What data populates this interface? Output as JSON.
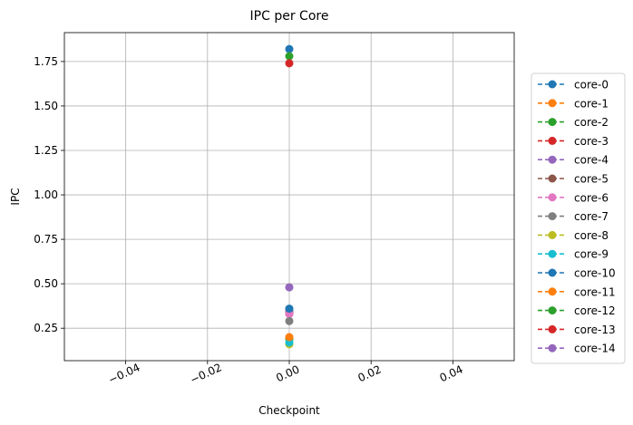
{
  "chart_data": {
    "type": "line",
    "title": "IPC per Core",
    "xlabel": "Checkpoint",
    "ylabel": "IPC",
    "xlim": [
      -0.055,
      0.055
    ],
    "ylim": [
      0.0675,
      1.9125
    ],
    "xticks": [
      -0.04,
      -0.02,
      0.0,
      0.02,
      0.04
    ],
    "xtick_labels": [
      "−0.04",
      "−0.02",
      "0.00",
      "0.02",
      "0.04"
    ],
    "yticks": [
      0.25,
      0.5,
      0.75,
      1.0,
      1.25,
      1.5,
      1.75
    ],
    "ytick_labels": [
      "0.25",
      "0.50",
      "0.75",
      "1.00",
      "1.25",
      "1.50",
      "1.75"
    ],
    "grid": true,
    "legend_position": "right, outside plot",
    "line_style": "dashed",
    "marker": "circle",
    "series": [
      {
        "name": "core-0",
        "color": "#1f77b4",
        "x": [
          0
        ],
        "values": [
          1.82
        ]
      },
      {
        "name": "core-1",
        "color": "#ff7f0e",
        "x": [
          0
        ],
        "values": [
          0.19
        ]
      },
      {
        "name": "core-2",
        "color": "#2ca02c",
        "x": [
          0
        ],
        "values": [
          0.19
        ]
      },
      {
        "name": "core-3",
        "color": "#d62728",
        "x": [
          0
        ],
        "values": [
          0.34
        ]
      },
      {
        "name": "core-4",
        "color": "#9467bd",
        "x": [
          0
        ],
        "values": [
          0.35
        ]
      },
      {
        "name": "core-5",
        "color": "#8c564b",
        "x": [
          0
        ],
        "values": [
          0.33
        ]
      },
      {
        "name": "core-6",
        "color": "#e377c2",
        "x": [
          0
        ],
        "values": [
          0.33
        ]
      },
      {
        "name": "core-7",
        "color": "#7f7f7f",
        "x": [
          0
        ],
        "values": [
          0.29
        ]
      },
      {
        "name": "core-8",
        "color": "#bcbd22",
        "x": [
          0
        ],
        "values": [
          0.16
        ]
      },
      {
        "name": "core-9",
        "color": "#17becf",
        "x": [
          0
        ],
        "values": [
          0.17
        ]
      },
      {
        "name": "core-10",
        "color": "#1f77b4",
        "x": [
          0
        ],
        "values": [
          0.36
        ]
      },
      {
        "name": "core-11",
        "color": "#ff7f0e",
        "x": [
          0
        ],
        "values": [
          0.2
        ]
      },
      {
        "name": "core-12",
        "color": "#2ca02c",
        "x": [
          0
        ],
        "values": [
          1.78
        ]
      },
      {
        "name": "core-13",
        "color": "#d62728",
        "x": [
          0
        ],
        "values": [
          1.74
        ]
      },
      {
        "name": "core-14",
        "color": "#9467bd",
        "x": [
          0
        ],
        "values": [
          0.48
        ]
      }
    ]
  }
}
